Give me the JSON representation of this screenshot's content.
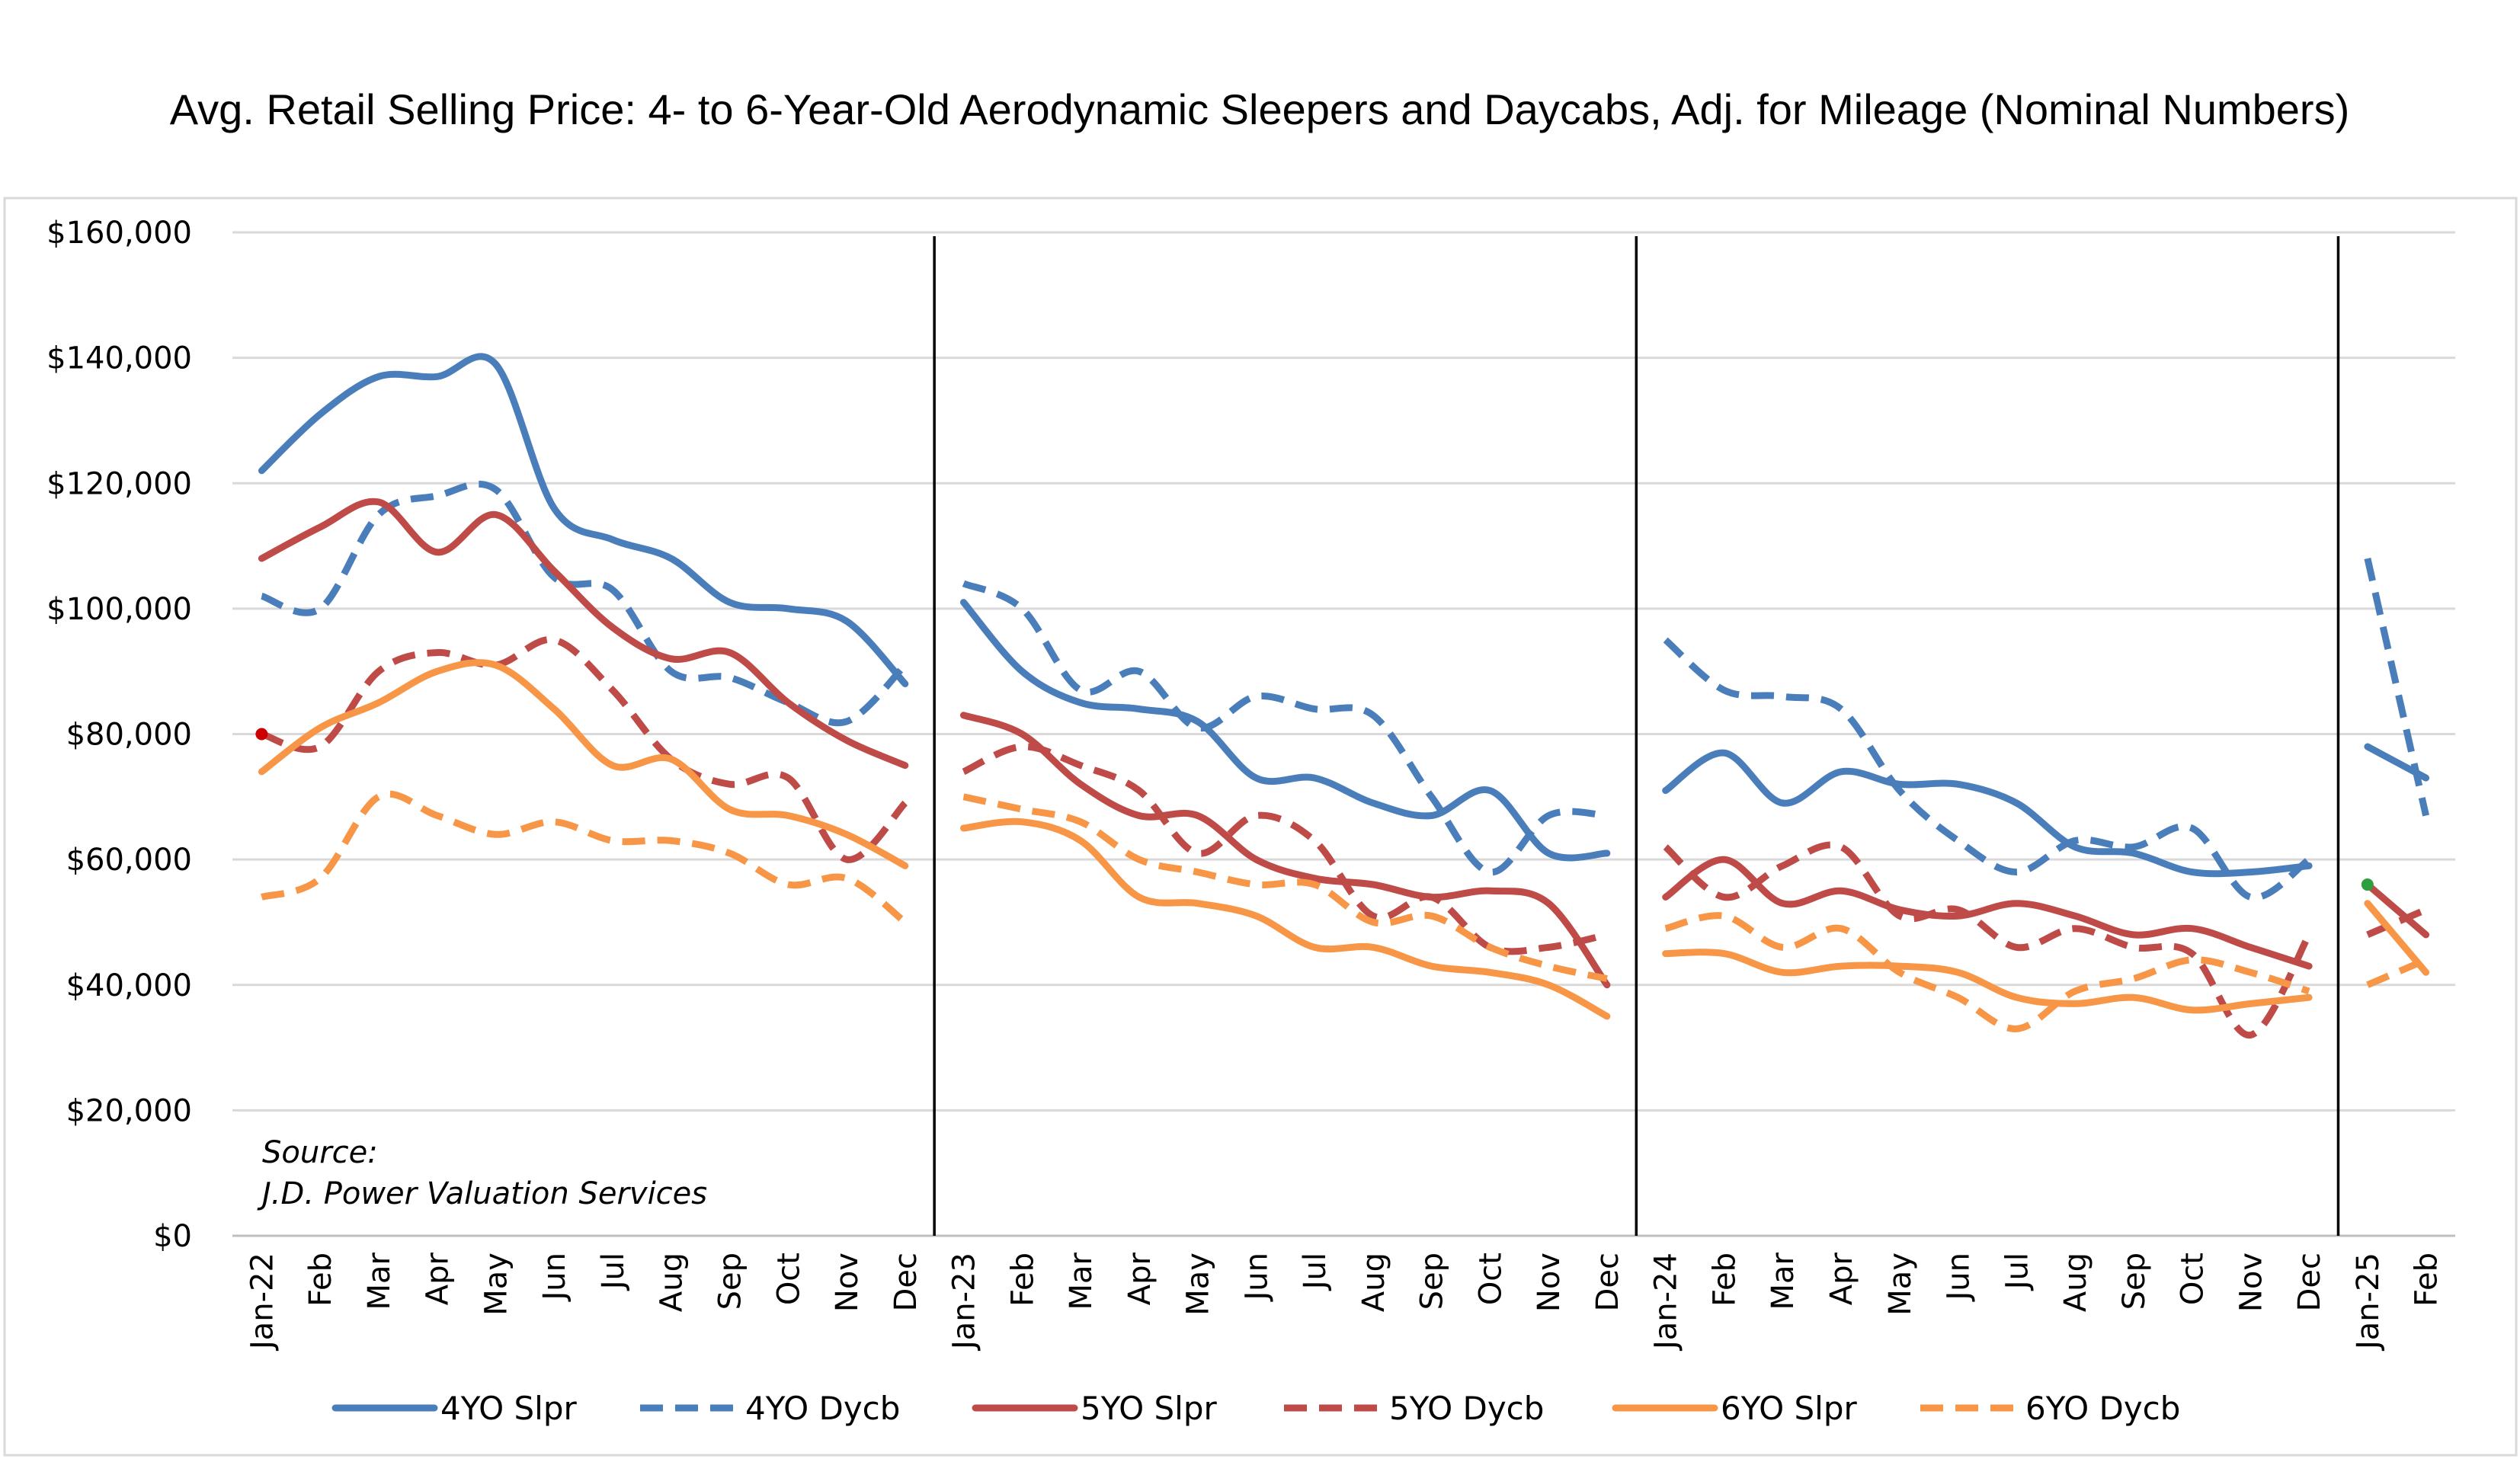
{
  "chart_data": {
    "type": "line",
    "title": "Avg. Retail Selling Price: 4- to 6-Year-Old Aerodynamic Sleepers and Daycabs, Adj. for Mileage (Nominal Numbers)",
    "source_label": "Source:",
    "source_text": "J.D. Power Valuation Services",
    "ylim": [
      0,
      160000
    ],
    "y_ticks": [
      0,
      20000,
      40000,
      60000,
      80000,
      100000,
      120000,
      140000,
      160000
    ],
    "y_tick_labels": [
      "$0",
      "$20,000",
      "$40,000",
      "$60,000",
      "$80,000",
      "$100,000",
      "$120,000",
      "$140,000",
      "$160,000"
    ],
    "grid": true,
    "legend_position": "bottom",
    "x_labels": [
      "Jan-22",
      "Feb",
      "Mar",
      "Apr",
      "May",
      "Jun",
      "Jul",
      "Aug",
      "Sep",
      "Oct",
      "Nov",
      "Dec",
      "Jan-23",
      "Feb",
      "Mar",
      "Apr",
      "May",
      "Jun",
      "Jul",
      "Aug",
      "Sep",
      "Oct",
      "Nov",
      "Dec",
      "Jan-24",
      "Feb",
      "Mar",
      "Apr",
      "May",
      "Jun",
      "Jul",
      "Aug",
      "Sep",
      "Oct",
      "Nov",
      "Dec",
      "Jan-25",
      "Feb"
    ],
    "year_breaks": [
      {
        "after": 11
      },
      {
        "after": 23
      },
      {
        "after": 35
      }
    ],
    "segments": [
      [
        0,
        11
      ],
      [
        12,
        23
      ],
      [
        24,
        35
      ],
      [
        36,
        37
      ]
    ],
    "series": [
      {
        "name": "4YO Slpr",
        "color": "#4a7ebb",
        "dashed": false,
        "values": [
          122000,
          131000,
          137000,
          137000,
          139000,
          116000,
          111000,
          108000,
          101000,
          100000,
          98000,
          88000,
          101000,
          90000,
          85000,
          84000,
          82000,
          73000,
          73000,
          69000,
          67000,
          71000,
          61000,
          61000,
          71000,
          77000,
          69000,
          74000,
          72000,
          72000,
          69000,
          62000,
          61000,
          58000,
          58000,
          59000,
          78000,
          73000
        ]
      },
      {
        "name": "4YO Dycb",
        "color": "#4a7ebb",
        "dashed": true,
        "values": [
          102000,
          100000,
          115000,
          118000,
          119000,
          105000,
          103000,
          90000,
          89000,
          85000,
          82000,
          91000,
          104000,
          100000,
          87000,
          90000,
          81000,
          86000,
          84000,
          83000,
          70000,
          58000,
          67000,
          67000,
          95000,
          87000,
          86000,
          84000,
          71000,
          63000,
          58000,
          63000,
          62000,
          65000,
          54000,
          60000,
          108000,
          67000
        ]
      },
      {
        "name": "5YO Slpr",
        "color": "#be4b48",
        "dashed": false,
        "values": [
          108000,
          113000,
          117000,
          109000,
          115000,
          106000,
          97000,
          92000,
          93000,
          85000,
          79000,
          75000,
          83000,
          80000,
          72000,
          67000,
          67000,
          60000,
          57000,
          56000,
          54000,
          55000,
          53000,
          40000,
          54000,
          60000,
          53000,
          55000,
          52000,
          51000,
          53000,
          51000,
          48000,
          49000,
          46000,
          43000,
          56000,
          48000
        ]
      },
      {
        "name": "5YO Dycb",
        "color": "#be4b48",
        "dashed": true,
        "values": [
          80000,
          78000,
          90000,
          93000,
          91000,
          95000,
          87000,
          76000,
          72000,
          73000,
          60000,
          69000,
          74000,
          78000,
          75000,
          71000,
          61000,
          67000,
          63000,
          51000,
          54000,
          46000,
          46000,
          48000,
          62000,
          54000,
          59000,
          62000,
          51000,
          52000,
          46000,
          49000,
          46000,
          45000,
          32000,
          48000,
          48000,
          52000
        ]
      },
      {
        "name": "6YO Slpr",
        "color": "#f79646",
        "dashed": false,
        "values": [
          74000,
          81000,
          85000,
          90000,
          91000,
          84000,
          75000,
          76000,
          68000,
          67000,
          64000,
          59000,
          65000,
          66000,
          63000,
          54000,
          53000,
          51000,
          46000,
          46000,
          43000,
          42000,
          40000,
          35000,
          45000,
          45000,
          42000,
          43000,
          43000,
          42000,
          38000,
          37000,
          38000,
          36000,
          37000,
          38000,
          53000,
          42000
        ]
      },
      {
        "name": "6YO Dycb",
        "color": "#f79646",
        "dashed": true,
        "values": [
          54000,
          57000,
          70000,
          67000,
          64000,
          66000,
          63000,
          63000,
          61000,
          56000,
          57000,
          50000,
          70000,
          68000,
          66000,
          60000,
          58000,
          56000,
          56000,
          50000,
          51000,
          46000,
          43000,
          41000,
          49000,
          51000,
          46000,
          49000,
          42000,
          38000,
          33000,
          39000,
          41000,
          44000,
          42000,
          39000,
          40000,
          44000
        ]
      }
    ],
    "markers": [
      {
        "series": "5YO Dycb",
        "index": 0,
        "color": "#cc0000"
      },
      {
        "series": "5YO Slpr",
        "index": 36,
        "color": "#2e9e3e"
      }
    ]
  }
}
